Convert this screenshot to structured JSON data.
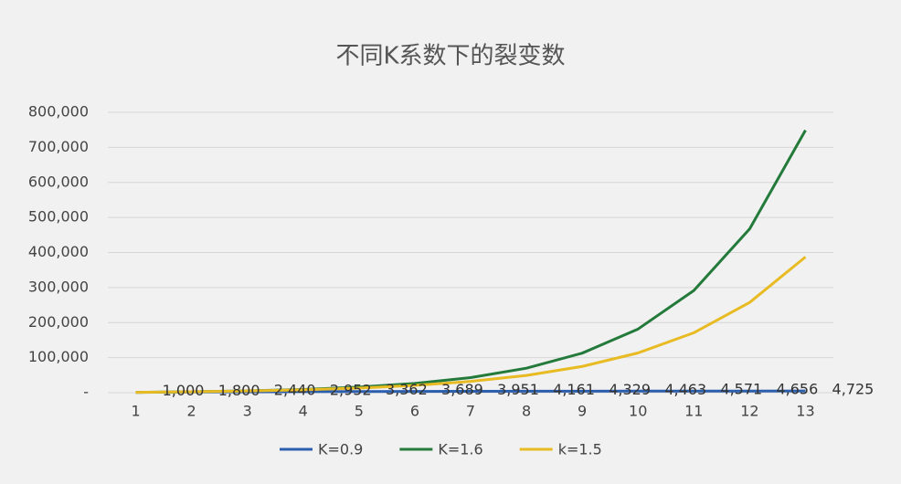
{
  "chart_data": {
    "type": "line",
    "title": "不同K系数下的裂变数",
    "categories": [
      "1",
      "2",
      "3",
      "4",
      "5",
      "6",
      "7",
      "8",
      "9",
      "10",
      "11",
      "12",
      "13"
    ],
    "series": [
      {
        "name": "K=0.9",
        "color": "#2b5fad",
        "values": [
          1000,
          1800,
          2440,
          2952,
          3362,
          3689,
          3951,
          4161,
          4329,
          4463,
          4571,
          4656,
          4725
        ],
        "value_labels": [
          "1,000",
          "1,800",
          "2,440",
          "2,952",
          "3,362",
          "3,689",
          "3,951",
          "4,161",
          "4,329",
          "4,463",
          "4,571",
          "4,656",
          "4,725"
        ]
      },
      {
        "name": "K=1.6",
        "color": "#237a3a",
        "values": [
          1000,
          2600,
          5160,
          9256,
          15810,
          26295,
          43073,
          69916,
          112866,
          181585,
          291536,
          467458,
          748933
        ]
      },
      {
        "name": "k=1.5",
        "color": "#e8bb22",
        "values": [
          1000,
          2500,
          4750,
          8125,
          13188,
          20781,
          32172,
          49258,
          74887,
          113330,
          170995,
          257493,
          387239
        ]
      }
    ],
    "ylim": [
      0,
      800000
    ],
    "yticks": [
      {
        "value": 0,
        "label": "-"
      },
      {
        "value": 100000,
        "label": "100,000"
      },
      {
        "value": 200000,
        "label": "200,000"
      },
      {
        "value": 300000,
        "label": "300,000"
      },
      {
        "value": 400000,
        "label": "400,000"
      },
      {
        "value": 500000,
        "label": "500,000"
      },
      {
        "value": 600000,
        "label": "600,000"
      },
      {
        "value": 700000,
        "label": "700,000"
      },
      {
        "value": 800000,
        "label": "800,000"
      }
    ],
    "grid": true,
    "legend": "bottom"
  }
}
